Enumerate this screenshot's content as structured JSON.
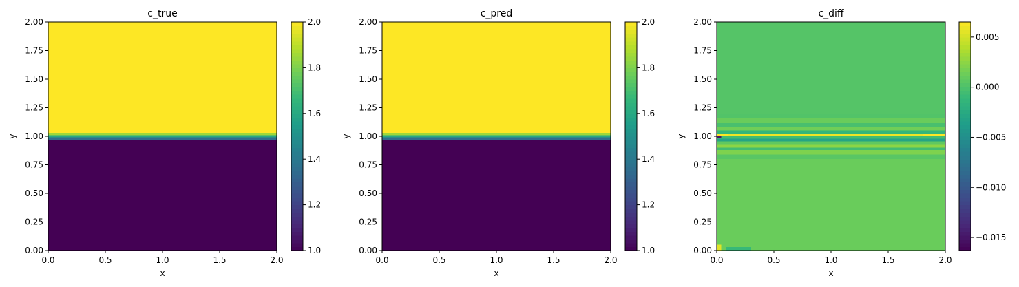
{
  "chart_data": [
    {
      "type": "heatmap",
      "title": "c_true",
      "xlabel": "x",
      "ylabel": "y",
      "xlim": [
        0,
        2
      ],
      "ylim": [
        0,
        2
      ],
      "xticks": [
        "0.0",
        "0.5",
        "1.0",
        "1.5",
        "2.0"
      ],
      "yticks": [
        "0.00",
        "0.25",
        "0.50",
        "0.75",
        "1.00",
        "1.25",
        "1.50",
        "1.75",
        "2.00"
      ],
      "colormap": "viridis",
      "colorbar": {
        "range": [
          1.0,
          2.0
        ],
        "ticks": [
          "1.0",
          "1.2",
          "1.4",
          "1.6",
          "1.8",
          "2.0"
        ]
      },
      "field": {
        "description_kind": "horizontal step",
        "rows": [
          {
            "y_from": 0.0,
            "y_to": 0.97,
            "value": 1.0
          },
          {
            "y_from": 0.97,
            "y_to": 0.99,
            "value": 1.35
          },
          {
            "y_from": 0.99,
            "y_to": 1.01,
            "value": 1.6
          },
          {
            "y_from": 1.01,
            "y_to": 1.03,
            "value": 1.85
          },
          {
            "y_from": 1.03,
            "y_to": 2.0,
            "value": 2.0
          }
        ]
      }
    },
    {
      "type": "heatmap",
      "title": "c_pred",
      "xlabel": "x",
      "ylabel": "y",
      "xlim": [
        0,
        2
      ],
      "ylim": [
        0,
        2
      ],
      "xticks": [
        "0.0",
        "0.5",
        "1.0",
        "1.5",
        "2.0"
      ],
      "yticks": [
        "0.00",
        "0.25",
        "0.50",
        "0.75",
        "1.00",
        "1.25",
        "1.50",
        "1.75",
        "2.00"
      ],
      "colormap": "viridis",
      "colorbar": {
        "range": [
          1.0,
          2.0
        ],
        "ticks": [
          "1.0",
          "1.2",
          "1.4",
          "1.6",
          "1.8",
          "2.0"
        ]
      },
      "field": {
        "description_kind": "horizontal step",
        "rows": [
          {
            "y_from": 0.0,
            "y_to": 0.97,
            "value": 1.0
          },
          {
            "y_from": 0.97,
            "y_to": 0.99,
            "value": 1.35
          },
          {
            "y_from": 0.99,
            "y_to": 1.01,
            "value": 1.6
          },
          {
            "y_from": 1.01,
            "y_to": 1.03,
            "value": 1.85
          },
          {
            "y_from": 1.03,
            "y_to": 2.0,
            "value": 2.0
          }
        ]
      }
    },
    {
      "type": "heatmap",
      "title": "c_diff",
      "xlabel": "x",
      "ylabel": "y",
      "xlim": [
        0,
        2
      ],
      "ylim": [
        0,
        2
      ],
      "xticks": [
        "0.0",
        "0.5",
        "1.0",
        "1.5",
        "2.0"
      ],
      "yticks": [
        "0.00",
        "0.25",
        "0.50",
        "0.75",
        "1.00",
        "1.25",
        "1.50",
        "1.75",
        "2.00"
      ],
      "colormap": "viridis",
      "colorbar": {
        "range": [
          -0.0163,
          0.0065
        ],
        "tick_values": [
          -0.015,
          -0.01,
          -0.005,
          0.0,
          0.005
        ],
        "ticks": [
          "−0.015",
          "−0.010",
          "−0.005",
          "0.000",
          "0.005"
        ]
      },
      "field": {
        "background": 0.0005,
        "bands": [
          {
            "y_from": 0.0,
            "y_to": 0.8,
            "value": 0.0012
          },
          {
            "y_from": 0.8,
            "y_to": 0.84,
            "value": 0.0005
          },
          {
            "y_from": 0.84,
            "y_to": 0.88,
            "value": 0.002
          },
          {
            "y_from": 0.88,
            "y_to": 0.9,
            "value": -0.0005
          },
          {
            "y_from": 0.9,
            "y_to": 0.93,
            "value": 0.0025
          },
          {
            "y_from": 0.93,
            "y_to": 0.955,
            "value": 0.0008
          },
          {
            "y_from": 0.955,
            "y_to": 0.98,
            "value": -0.003
          },
          {
            "y_from": 0.98,
            "y_to": 1.0,
            "value": -0.0005
          },
          {
            "y_from": 1.0,
            "y_to": 1.02,
            "value": 0.006
          },
          {
            "y_from": 1.02,
            "y_to": 1.05,
            "value": -0.0012
          },
          {
            "y_from": 1.05,
            "y_to": 1.08,
            "value": 0.0015
          },
          {
            "y_from": 1.08,
            "y_to": 1.12,
            "value": -0.0002
          },
          {
            "y_from": 1.12,
            "y_to": 1.16,
            "value": 0.0012
          },
          {
            "y_from": 1.16,
            "y_to": 1.2,
            "value": 0.0002
          },
          {
            "y_from": 1.2,
            "y_to": 2.0,
            "value": 0.0003
          }
        ],
        "spots": [
          {
            "x_from": 0.0,
            "x_to": 0.04,
            "y_from": 0.99,
            "y_to": 1.0,
            "value": -0.015
          },
          {
            "x_from": 0.0,
            "x_to": 0.1,
            "y_from": 1.0,
            "y_to": 1.02,
            "value": 0.0065
          },
          {
            "x_from": 1.8,
            "x_to": 2.0,
            "y_from": 1.0,
            "y_to": 1.02,
            "value": 0.0065
          },
          {
            "x_from": 0.0,
            "x_to": 0.04,
            "y_from": 0.0,
            "y_to": 0.05,
            "value": 0.0055
          },
          {
            "x_from": 0.08,
            "x_to": 0.3,
            "y_from": 0.0,
            "y_to": 0.03,
            "value": -0.001
          }
        ]
      }
    }
  ]
}
